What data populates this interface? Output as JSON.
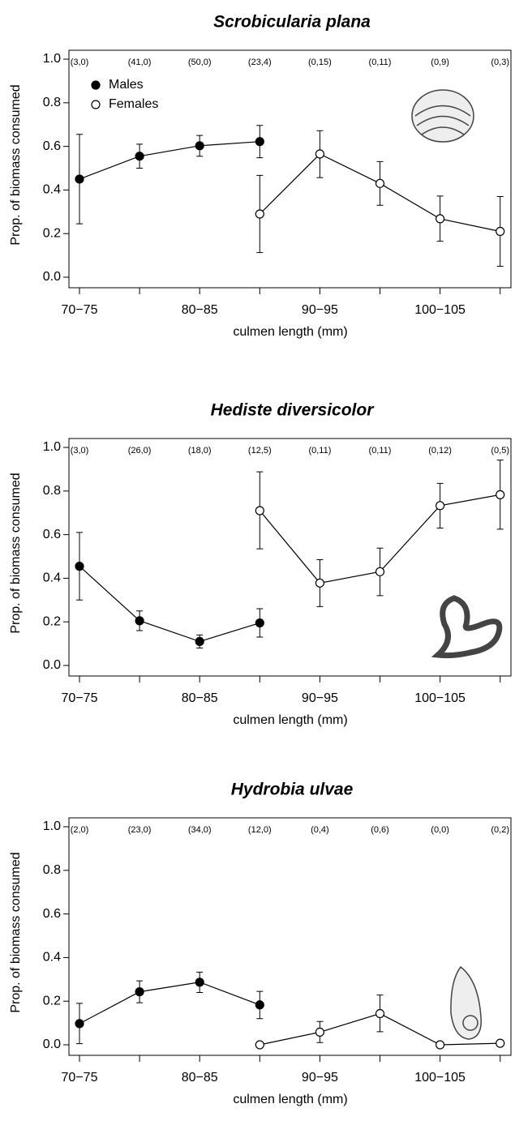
{
  "chart_data": [
    {
      "type": "line",
      "title": "Scrobicularia plana",
      "xlabel": "culmen length (mm)",
      "ylabel": "Prop. of biomass consumed",
      "categories": [
        "70−75",
        null,
        "80−85",
        null,
        "90−95",
        null,
        "100−105",
        null
      ],
      "annotations": [
        "(3,0)",
        "(41,0)",
        "(50,0)",
        "(23,4)",
        "(0,15)",
        "(0,11)",
        "(0,9)",
        "(0,3)"
      ],
      "ylim": [
        0,
        1
      ],
      "yticks": [
        {
          "value": 0,
          "label": "0.0"
        },
        {
          "value": 0.2,
          "label": "0.2"
        },
        {
          "value": 0.4,
          "label": "0.4"
        },
        {
          "value": 0.6,
          "label": "0.6"
        },
        {
          "value": 0.8,
          "label": "0.8"
        },
        {
          "value": 1,
          "label": "1.0"
        }
      ],
      "legend": "upper left",
      "series": [
        {
          "name": "Males",
          "color": "#000000",
          "values": [
            0.45,
            0.555,
            0.603,
            0.622,
            null,
            null,
            null,
            null
          ],
          "lower": [
            0.245,
            0.5,
            0.555,
            0.548,
            null,
            null,
            null,
            null
          ],
          "upper": [
            0.655,
            0.61,
            0.65,
            0.696,
            null,
            null,
            null,
            null
          ]
        },
        {
          "name": "Females",
          "color": "#ffffff",
          "values": [
            null,
            null,
            null,
            0.29,
            0.565,
            0.43,
            0.268,
            0.21
          ],
          "lower": [
            null,
            null,
            null,
            0.113,
            0.457,
            0.33,
            0.165,
            0.05
          ],
          "upper": [
            null,
            null,
            null,
            0.467,
            0.672,
            0.53,
            0.372,
            0.37
          ]
        }
      ]
    },
    {
      "type": "line",
      "title": "Hediste diversicolor",
      "xlabel": "culmen length (mm)",
      "ylabel": "Prop. of biomass consumed",
      "categories": [
        "70−75",
        null,
        "80−85",
        null,
        "90−95",
        null,
        "100−105",
        null
      ],
      "annotations": [
        "(3,0)",
        "(26,0)",
        "(18,0)",
        "(12,5)",
        "(0,11)",
        "(0,11)",
        "(0,12)",
        "(0,5)"
      ],
      "ylim": [
        0,
        1
      ],
      "yticks": [
        {
          "value": 0,
          "label": "0.0"
        },
        {
          "value": 0.2,
          "label": "0.2"
        },
        {
          "value": 0.4,
          "label": "0.4"
        },
        {
          "value": 0.6,
          "label": "0.6"
        },
        {
          "value": 0.8,
          "label": "0.8"
        },
        {
          "value": 1,
          "label": "1.0"
        }
      ],
      "series": [
        {
          "color": "#000000",
          "values": [
            0.455,
            0.205,
            0.11,
            0.195,
            null,
            null,
            null,
            null
          ],
          "lower": [
            0.3,
            0.16,
            0.08,
            0.13,
            null,
            null,
            null,
            null
          ],
          "upper": [
            0.61,
            0.25,
            0.14,
            0.26,
            null,
            null,
            null,
            null
          ]
        },
        {
          "color": "#ffffff",
          "values": [
            null,
            null,
            null,
            0.71,
            0.378,
            0.43,
            0.733,
            0.783
          ],
          "lower": [
            null,
            null,
            null,
            0.535,
            0.27,
            0.32,
            0.63,
            0.625
          ],
          "upper": [
            null,
            null,
            null,
            0.888,
            0.485,
            0.538,
            0.835,
            0.942
          ]
        }
      ]
    },
    {
      "type": "line",
      "title": "Hydrobia ulvae",
      "xlabel": "culmen length (mm)",
      "ylabel": "Prop. of biomass consumed",
      "categories": [
        "70−75",
        null,
        "80−85",
        null,
        "90−95",
        null,
        "100−105",
        null
      ],
      "annotations": [
        "(2,0)",
        "(23,0)",
        "(34,0)",
        "(12,0)",
        "(0,4)",
        "(0,6)",
        "(0,0)",
        "(0,2)"
      ],
      "ylim": [
        0,
        1
      ],
      "yticks": [
        {
          "value": 0,
          "label": "0.0"
        },
        {
          "value": 0.2,
          "label": "0.2"
        },
        {
          "value": 0.4,
          "label": "0.4"
        },
        {
          "value": 0.6,
          "label": "0.6"
        },
        {
          "value": 0.8,
          "label": "0.8"
        },
        {
          "value": 1,
          "label": "1.0"
        }
      ],
      "series": [
        {
          "color": "#000000",
          "values": [
            0.097,
            0.243,
            0.287,
            0.183,
            null,
            null,
            null,
            null
          ],
          "lower": [
            0.005,
            0.193,
            0.24,
            0.12,
            null,
            null,
            null,
            null
          ],
          "upper": [
            0.19,
            0.293,
            0.333,
            0.245,
            null,
            null,
            null,
            null
          ]
        },
        {
          "color": "#ffffff",
          "values": [
            null,
            null,
            null,
            0,
            0.058,
            0.143,
            0,
            0.007
          ],
          "lower": [
            null,
            null,
            null,
            null,
            0.01,
            0.06,
            null,
            null
          ],
          "upper": [
            null,
            null,
            null,
            null,
            0.107,
            0.228,
            null,
            null
          ]
        }
      ]
    }
  ]
}
